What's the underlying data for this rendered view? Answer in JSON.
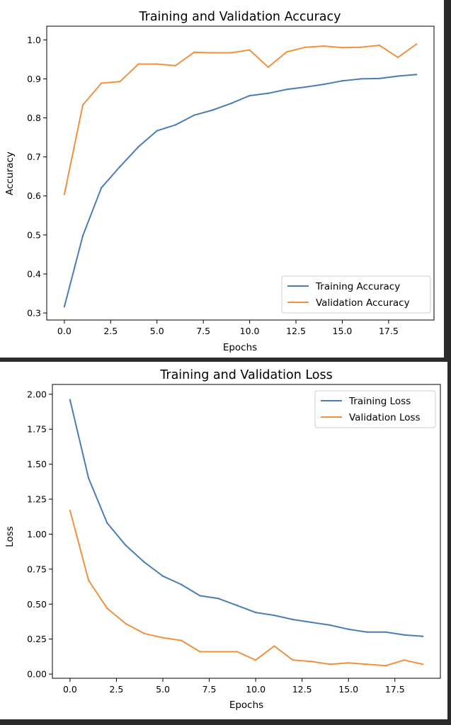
{
  "chart_data": [
    {
      "type": "line",
      "title": "Training and Validation Accuracy",
      "xlabel": "Epochs",
      "ylabel": "Accuracy",
      "xlim": [
        -0.95,
        19.95
      ],
      "ylim": [
        0.282,
        1.035
      ],
      "xticks": [
        0.0,
        2.5,
        5.0,
        7.5,
        10.0,
        12.5,
        15.0,
        17.5
      ],
      "xtick_labels": [
        "0.0",
        "2.5",
        "5.0",
        "7.5",
        "10.0",
        "12.5",
        "15.0",
        "17.5"
      ],
      "yticks": [
        0.3,
        0.4,
        0.5,
        0.6,
        0.7,
        0.8,
        0.9,
        1.0
      ],
      "ytick_labels": [
        "0.3",
        "0.4",
        "0.5",
        "0.6",
        "0.7",
        "0.8",
        "0.9",
        "1.0"
      ],
      "grid": false,
      "legend": "lower-right",
      "x": [
        0,
        1,
        2,
        3,
        4,
        5,
        6,
        7,
        8,
        9,
        10,
        11,
        12,
        13,
        14,
        15,
        16,
        17,
        18,
        19
      ],
      "series": [
        {
          "name": "Training Accuracy",
          "color": "#4a7db8",
          "values": [
            0.316,
            0.498,
            0.621,
            0.675,
            0.726,
            0.767,
            0.782,
            0.807,
            0.82,
            0.837,
            0.857,
            0.863,
            0.873,
            0.879,
            0.886,
            0.895,
            0.9,
            0.901,
            0.907,
            0.911
          ]
        },
        {
          "name": "Validation Accuracy",
          "color": "#f0913f",
          "values": [
            0.604,
            0.833,
            0.889,
            0.893,
            0.938,
            0.938,
            0.934,
            0.968,
            0.967,
            0.967,
            0.974,
            0.93,
            0.969,
            0.981,
            0.984,
            0.98,
            0.981,
            0.986,
            0.955,
            0.989
          ]
        }
      ]
    },
    {
      "type": "line",
      "title": "Training and Validation Loss",
      "xlabel": "Epochs",
      "ylabel": "Loss",
      "xlim": [
        -0.95,
        19.95
      ],
      "ylim": [
        -0.03,
        2.07
      ],
      "xticks": [
        0.0,
        2.5,
        5.0,
        7.5,
        10.0,
        12.5,
        15.0,
        17.5
      ],
      "xtick_labels": [
        "0.0",
        "2.5",
        "5.0",
        "7.5",
        "10.0",
        "12.5",
        "15.0",
        "17.5"
      ],
      "yticks": [
        0.0,
        0.25,
        0.5,
        0.75,
        1.0,
        1.25,
        1.5,
        1.75,
        2.0
      ],
      "ytick_labels": [
        "0.00",
        "0.25",
        "0.50",
        "0.75",
        "1.00",
        "1.25",
        "1.50",
        "1.75",
        "2.00"
      ],
      "grid": false,
      "legend": "upper-right",
      "x": [
        0,
        1,
        2,
        3,
        4,
        5,
        6,
        7,
        8,
        9,
        10,
        11,
        12,
        13,
        14,
        15,
        16,
        17,
        18,
        19
      ],
      "series": [
        {
          "name": "Training Loss",
          "color": "#4a7db8",
          "values": [
            1.96,
            1.4,
            1.08,
            0.92,
            0.8,
            0.7,
            0.64,
            0.56,
            0.54,
            0.49,
            0.44,
            0.42,
            0.39,
            0.37,
            0.35,
            0.32,
            0.3,
            0.3,
            0.28,
            0.27
          ]
        },
        {
          "name": "Validation Loss",
          "color": "#f0913f",
          "values": [
            1.17,
            0.67,
            0.47,
            0.36,
            0.29,
            0.26,
            0.24,
            0.16,
            0.16,
            0.16,
            0.1,
            0.2,
            0.1,
            0.09,
            0.07,
            0.08,
            0.07,
            0.06,
            0.1,
            0.07
          ]
        }
      ]
    }
  ]
}
